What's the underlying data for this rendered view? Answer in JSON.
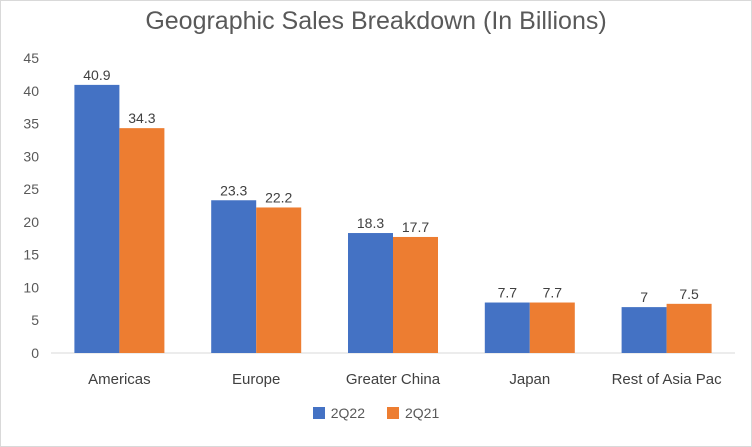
{
  "chart_data": {
    "type": "bar",
    "title": "Geographic Sales Breakdown (In Billions)",
    "categories": [
      "Americas",
      "Europe",
      "Greater China",
      "Japan",
      "Rest of Asia Pac"
    ],
    "series": [
      {
        "name": "2Q22",
        "color": "#4472c4",
        "values": [
          40.9,
          23.3,
          18.3,
          7.7,
          7
        ],
        "labels": [
          "40.9",
          "23.3",
          "18.3",
          "7.7",
          "7"
        ]
      },
      {
        "name": "2Q21",
        "color": "#ed7d31",
        "values": [
          34.3,
          22.2,
          17.7,
          7.7,
          7.5
        ],
        "labels": [
          "34.3",
          "22.2",
          "17.7",
          "7.7",
          "7.5"
        ]
      }
    ],
    "ylim": [
      0,
      45
    ],
    "yticks": [
      "0",
      "5",
      "10",
      "15",
      "20",
      "25",
      "30",
      "35",
      "40",
      "45"
    ],
    "xlabel": "",
    "ylabel": "",
    "legend": "bottom-center",
    "grid": false
  }
}
